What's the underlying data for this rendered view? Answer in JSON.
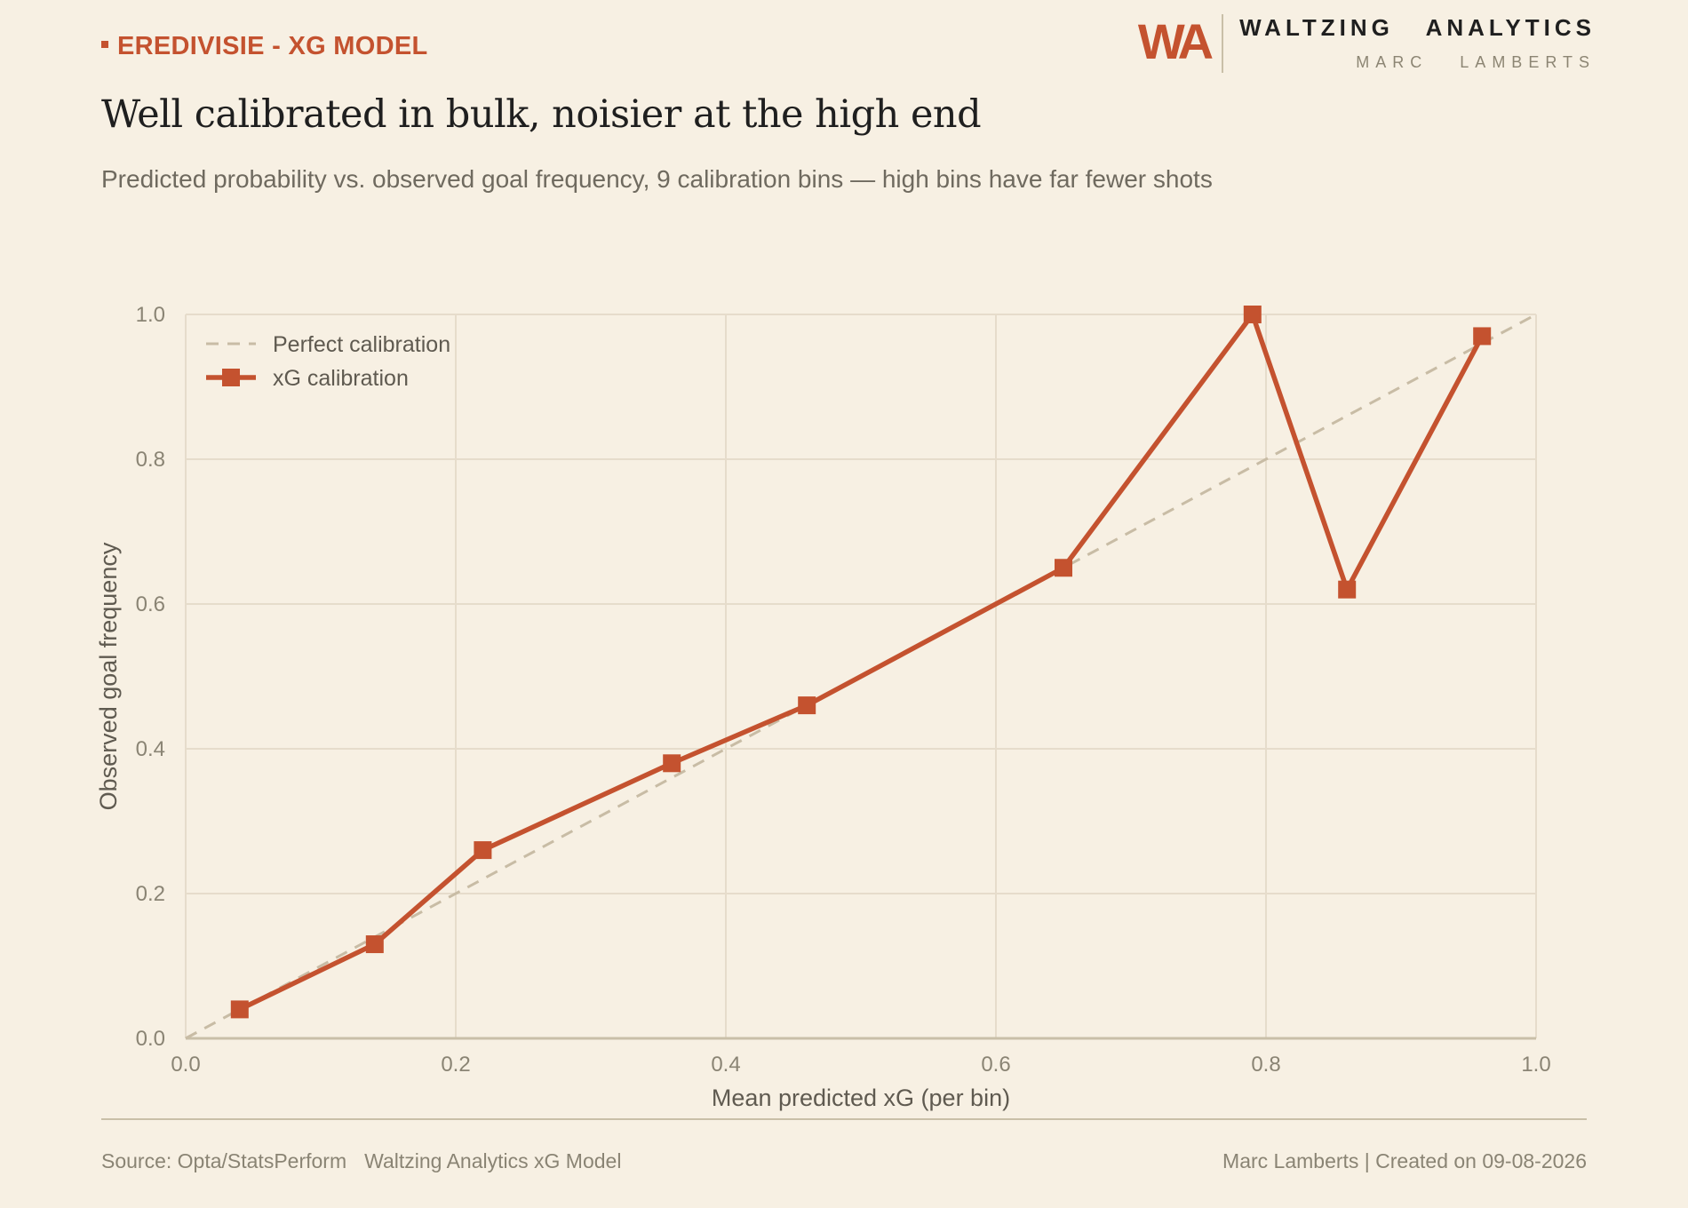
{
  "header": {
    "kicker": "EREDIVISIE - XG MODEL",
    "title": "Well calibrated in bulk, noisier at the high end",
    "subtitle": "Predicted probability vs. observed goal frequency, 9 calibration bins — high bins have far fewer shots"
  },
  "brand": {
    "logo": "WA",
    "name": "WALTZING   ANALYTICS",
    "author": "MARC   LAMBERTS"
  },
  "footer": {
    "source": "Source: Opta/StatsPerform",
    "model": "Waltzing Analytics xG Model",
    "credit": "Marc Lamberts | Created on 09-08-2026"
  },
  "colors": {
    "background": "#f7f0e3",
    "accent": "#c4522f",
    "reference": "#c8bca5",
    "grid": "#e6dccb",
    "axis": "#c9bfa8",
    "tick_text": "#8a8474",
    "label_text": "#5f5a50"
  },
  "chart_data": {
    "type": "line",
    "title": "",
    "xlabel": "Mean predicted xG (per bin)",
    "ylabel": "Observed goal frequency",
    "xlim": [
      0.0,
      1.0
    ],
    "ylim": [
      0.0,
      1.0
    ],
    "xticks": [
      "0.0",
      "0.2",
      "0.4",
      "0.6",
      "0.8",
      "1.0"
    ],
    "yticks": [
      "0.0",
      "0.2",
      "0.4",
      "0.6",
      "0.8",
      "1.0"
    ],
    "grid": true,
    "legend_position": "top-left",
    "series": [
      {
        "name": "Perfect calibration",
        "style": "dashed",
        "x": [
          0.0,
          1.0
        ],
        "y": [
          0.0,
          1.0
        ]
      },
      {
        "name": "xG calibration",
        "style": "solid-square-markers",
        "x": [
          0.04,
          0.14,
          0.22,
          0.36,
          0.46,
          0.65,
          0.79,
          0.86,
          0.96
        ],
        "y": [
          0.04,
          0.13,
          0.26,
          0.38,
          0.46,
          0.65,
          1.0,
          0.62,
          0.97
        ]
      }
    ]
  }
}
